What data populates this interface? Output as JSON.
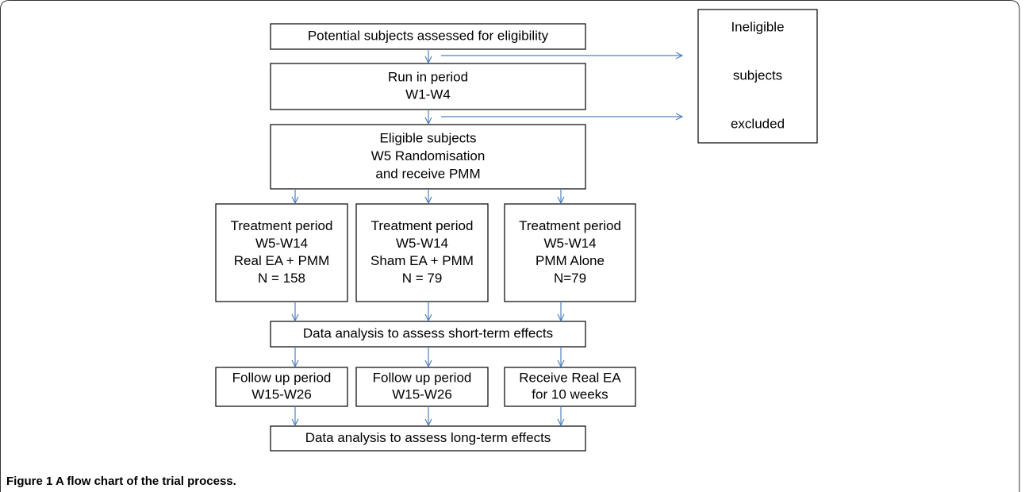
{
  "nodes": [
    {
      "lines": [
        "Potential subjects assessed for eligibility"
      ]
    },
    {
      "lines": [
        "Run in period",
        "W1-W4"
      ]
    },
    {
      "lines": [
        "Eligible subjects",
        "W5 Randomisation",
        "and receive PMM"
      ]
    },
    {
      "lines": [
        "Treatment period",
        "W5-W14",
        "Real EA + PMM",
        "N = 158"
      ]
    },
    {
      "lines": [
        "Treatment period",
        "W5-W14",
        "Sham EA + PMM",
        "N = 79"
      ]
    },
    {
      "lines": [
        "Treatment period",
        "W5-W14",
        "PMM Alone",
        "N=79"
      ]
    },
    {
      "lines": [
        "Data analysis to assess short-term effects"
      ]
    },
    {
      "lines": [
        "Follow up period",
        "W15-W26"
      ]
    },
    {
      "lines": [
        "Follow up period",
        "W15-W26"
      ]
    },
    {
      "lines": [
        "Receive Real EA",
        "for 10 weeks"
      ]
    },
    {
      "lines": [
        "Data analysis to assess long-term effects"
      ]
    },
    {
      "lines": [
        "Ineligible",
        "subjects",
        "excluded"
      ]
    }
  ],
  "caption": {
    "label": "Figure 1",
    "text": "A flow chart of the trial process."
  }
}
